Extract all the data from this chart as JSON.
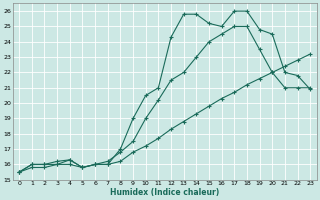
{
  "xlabel": "Humidex (Indice chaleur)",
  "ylabel": "",
  "bg_color": "#cce8e4",
  "grid_color": "#b0d4d0",
  "line_color": "#1a6b5a",
  "xlim": [
    -0.5,
    23.5
  ],
  "ylim": [
    15,
    26.5
  ],
  "xticks": [
    0,
    1,
    2,
    3,
    4,
    5,
    6,
    7,
    8,
    9,
    10,
    11,
    12,
    13,
    14,
    15,
    16,
    17,
    18,
    19,
    20,
    21,
    22,
    23
  ],
  "yticks": [
    15,
    16,
    17,
    18,
    19,
    20,
    21,
    22,
    23,
    24,
    25,
    26
  ],
  "line1_x": [
    0,
    1,
    2,
    3,
    4,
    5,
    6,
    7,
    8,
    9,
    10,
    11,
    12,
    13,
    14,
    15,
    16,
    17,
    18,
    19,
    20,
    21,
    22,
    23
  ],
  "line1_y": [
    15.5,
    16.0,
    16.0,
    16.0,
    16.3,
    15.8,
    16.0,
    16.0,
    17.0,
    19.0,
    20.5,
    21.0,
    24.3,
    25.8,
    25.8,
    25.2,
    25.0,
    26.0,
    26.0,
    24.8,
    24.5,
    22.0,
    21.8,
    20.9
  ],
  "line2_x": [
    0,
    1,
    2,
    3,
    4,
    5,
    6,
    7,
    8,
    9,
    10,
    11,
    12,
    13,
    14,
    15,
    16,
    17,
    18,
    19,
    20,
    21,
    22,
    23
  ],
  "line2_y": [
    15.5,
    16.0,
    16.0,
    16.2,
    16.3,
    15.8,
    16.0,
    16.2,
    16.8,
    17.5,
    19.0,
    20.2,
    21.5,
    22.0,
    23.0,
    24.0,
    24.5,
    25.0,
    25.0,
    23.5,
    22.0,
    21.0,
    21.0,
    21.0
  ],
  "line3_x": [
    0,
    1,
    2,
    3,
    4,
    5,
    6,
    7,
    8,
    9,
    10,
    11,
    12,
    13,
    14,
    15,
    16,
    17,
    18,
    19,
    20,
    21,
    22,
    23
  ],
  "line3_y": [
    15.5,
    15.8,
    15.8,
    16.0,
    16.0,
    15.8,
    16.0,
    16.0,
    16.2,
    16.8,
    17.2,
    17.7,
    18.3,
    18.8,
    19.3,
    19.8,
    20.3,
    20.7,
    21.2,
    21.6,
    22.0,
    22.4,
    22.8,
    23.2
  ]
}
